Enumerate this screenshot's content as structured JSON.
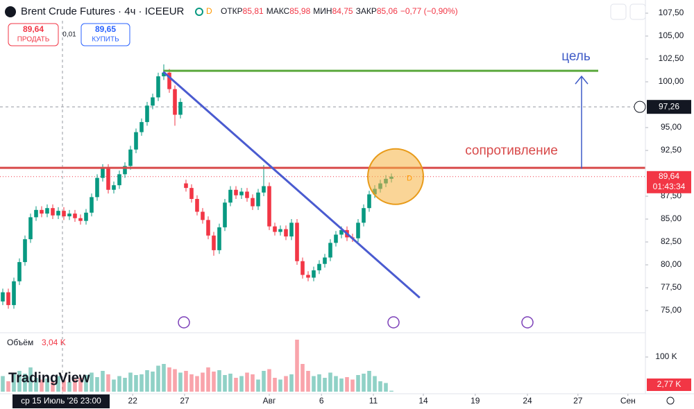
{
  "toolbar": {
    "symbol": "Brent Crude Futures · 4ч · ICEEUR",
    "badge": "D",
    "open_label": "ОТКР",
    "open": "85,81",
    "high_label": "МАКС",
    "high": "85,98",
    "low_label": "МИН",
    "low": "84,75",
    "close_label": "ЗАКР",
    "close": "85,06",
    "change": "−0,77 (−0,90%)"
  },
  "trade": {
    "sell_price": "89,64",
    "sell_label": "ПРОДАТЬ",
    "spread": "0,01",
    "buy_price": "89,65",
    "buy_label": "КУПИТЬ"
  },
  "logo": "TradingView",
  "chart_data": {
    "type": "candlestick",
    "open": [
      76.0,
      77.0,
      75.6,
      78.2,
      80.3,
      82.8,
      85.2,
      86.0,
      85.6,
      86.2,
      85.4,
      85.9,
      85.3,
      85.6,
      85.1,
      84.8,
      85.7,
      87.4,
      89.5,
      90.6,
      88.2,
      88.7,
      89.9,
      90.8,
      92.6,
      94.5,
      95.6,
      97.4,
      98.3,
      100.6,
      101.0,
      99.2,
      96.4,
      88.9,
      88.4,
      87.2,
      85.8,
      84.9,
      83.2,
      81.6,
      84.1,
      86.8,
      88.2,
      87.6,
      88.0,
      87.3,
      86.4,
      87.9,
      88.6,
      84.2,
      83.6,
      83.9,
      83.1,
      84.6,
      80.4,
      78.9,
      78.6,
      79.4,
      80.1,
      80.8,
      82.4,
      83.3,
      83.8,
      83.0,
      82.9,
      84.6,
      86.2,
      87.7,
      88.3,
      88.9,
      89.4
    ],
    "high": [
      77.4,
      77.4,
      78.6,
      80.7,
      83.2,
      85.6,
      86.4,
      86.4,
      86.6,
      86.6,
      86.3,
      86.3,
      86.0,
      86.0,
      85.5,
      86.1,
      87.8,
      89.9,
      91.0,
      91.0,
      89.1,
      90.3,
      91.2,
      93.0,
      94.9,
      96.0,
      97.8,
      98.7,
      101.0,
      101.9,
      101.4,
      99.6,
      98.2,
      89.3,
      88.8,
      87.6,
      86.2,
      85.3,
      83.6,
      84.5,
      87.2,
      88.6,
      88.6,
      88.4,
      88.4,
      87.7,
      88.3,
      90.9,
      89.0,
      84.6,
      84.3,
      84.3,
      85.0,
      85.0,
      80.8,
      79.3,
      79.8,
      80.5,
      81.2,
      82.8,
      83.7,
      84.2,
      84.2,
      83.4,
      85.0,
      86.6,
      88.1,
      88.7,
      89.3,
      89.8,
      89.98
    ],
    "low": [
      75.6,
      75.2,
      75.2,
      77.8,
      79.9,
      82.4,
      84.8,
      85.2,
      85.2,
      85.0,
      85.0,
      84.9,
      84.9,
      84.7,
      84.4,
      84.4,
      85.3,
      87.0,
      89.1,
      87.8,
      87.8,
      88.3,
      89.5,
      90.4,
      92.2,
      94.1,
      95.2,
      97.0,
      97.9,
      100.2,
      98.8,
      95.2,
      96.0,
      88.0,
      86.8,
      85.4,
      84.5,
      82.8,
      81.0,
      81.2,
      83.7,
      86.4,
      87.2,
      87.2,
      86.9,
      86.0,
      86.0,
      87.5,
      83.8,
      83.2,
      83.2,
      82.7,
      82.7,
      80.0,
      78.5,
      78.2,
      78.2,
      79.0,
      79.7,
      80.4,
      82.0,
      82.9,
      82.6,
      82.5,
      82.5,
      84.2,
      85.8,
      87.3,
      87.9,
      88.5,
      89.0
    ],
    "close": [
      77.0,
      75.6,
      78.2,
      80.3,
      82.8,
      85.2,
      86.0,
      85.6,
      86.2,
      85.4,
      85.9,
      85.3,
      85.6,
      85.1,
      84.8,
      85.7,
      87.4,
      89.5,
      90.6,
      88.2,
      88.7,
      89.9,
      90.8,
      92.6,
      94.5,
      95.6,
      97.4,
      98.3,
      100.6,
      101.0,
      99.2,
      96.4,
      97.8,
      88.4,
      87.2,
      85.8,
      84.9,
      83.2,
      81.6,
      84.1,
      86.8,
      88.2,
      87.6,
      88.0,
      87.3,
      86.4,
      87.9,
      88.6,
      84.2,
      83.6,
      83.9,
      83.1,
      84.6,
      80.4,
      78.9,
      78.6,
      79.4,
      80.1,
      80.8,
      82.4,
      83.3,
      83.8,
      83.0,
      82.9,
      84.6,
      86.2,
      87.7,
      88.3,
      88.9,
      89.4,
      89.64
    ],
    "up_color": "#089981",
    "down_color": "#f23645",
    "ylim": [
      72.73,
      108.94
    ],
    "yticks": [
      {
        "value": 107.5,
        "label": "107,50"
      },
      {
        "value": 105,
        "label": "105,00"
      },
      {
        "value": 102.5,
        "label": "102,50"
      },
      {
        "value": 100,
        "label": "100,00"
      },
      {
        "value": 95,
        "label": "95,00"
      },
      {
        "value": 92.5,
        "label": "92,50"
      },
      {
        "value": 87.5,
        "label": "87,50"
      },
      {
        "value": 85,
        "label": "85,00"
      },
      {
        "value": 82.5,
        "label": "82,50"
      },
      {
        "value": 80,
        "label": "80,00"
      },
      {
        "value": 77.5,
        "label": "77,50"
      },
      {
        "value": 75,
        "label": "75,00"
      }
    ],
    "xlim": [
      -0.5,
      115.75
    ],
    "xticks": [
      {
        "value": 23.4,
        "label": "22"
      },
      {
        "value": 32.75,
        "label": "27"
      },
      {
        "value": 48,
        "label": "Авг"
      },
      {
        "value": 57.4,
        "label": "6"
      },
      {
        "value": 66.75,
        "label": "11"
      },
      {
        "value": 75.75,
        "label": "14"
      },
      {
        "value": 85.1,
        "label": "19"
      },
      {
        "value": 94.5,
        "label": "24"
      },
      {
        "value": 103.6,
        "label": "27"
      },
      {
        "value": 112.6,
        "label": "Сен"
      }
    ],
    "crosshair": {
      "x": 10.75,
      "price": 97.26,
      "label": "97,26",
      "time_label": "ср 15 Июль '26 23:00"
    },
    "last": {
      "price": 89.64,
      "label": "89,64",
      "countdown": "01:43:34",
      "marker": "D"
    },
    "volume": {
      "name": "Объём",
      "label": "3,04 K",
      "values": [
        45000,
        30000,
        55000,
        60000,
        52000,
        70000,
        40000,
        35000,
        38000,
        30000,
        45000,
        33000,
        28000,
        36000,
        40000,
        48000,
        55000,
        42000,
        60000,
        50000,
        35000,
        45000,
        40000,
        55000,
        48000,
        50000,
        62000,
        58000,
        75000,
        80000,
        70000,
        65000,
        55000,
        60000,
        50000,
        45000,
        55000,
        70000,
        58000,
        62000,
        48000,
        52000,
        40000,
        45000,
        55000,
        50000,
        35000,
        60000,
        65000,
        40000,
        35000,
        45000,
        50000,
        150000,
        80000,
        60000,
        45000,
        50000,
        40000,
        55000,
        45000,
        38000,
        42000,
        35000,
        48000,
        52000,
        60000,
        45000,
        30000,
        25000,
        2770
      ],
      "ylim": [
        0,
        150000
      ],
      "yticks": [
        {
          "value": 100000,
          "label": "100 K"
        }
      ],
      "last_label": "2,77 K"
    },
    "drawings": [
      {
        "type": "hline",
        "price": 90.6,
        "color": "#d84a4a",
        "label": "сопротивление"
      },
      {
        "type": "segment",
        "x": [
          28.9,
          107.25
        ],
        "y": [
          101.2,
          101.2
        ],
        "color": "#5aa83c"
      },
      {
        "type": "segment",
        "x": [
          28.9,
          75.1
        ],
        "y": [
          101.1,
          76.4
        ],
        "color": "#4a5bd0"
      },
      {
        "type": "arrow",
        "x": [
          104.25,
          104.25
        ],
        "y": [
          90.5,
          100.6
        ],
        "color": "#3f5bc7",
        "label": "цель"
      }
    ]
  }
}
